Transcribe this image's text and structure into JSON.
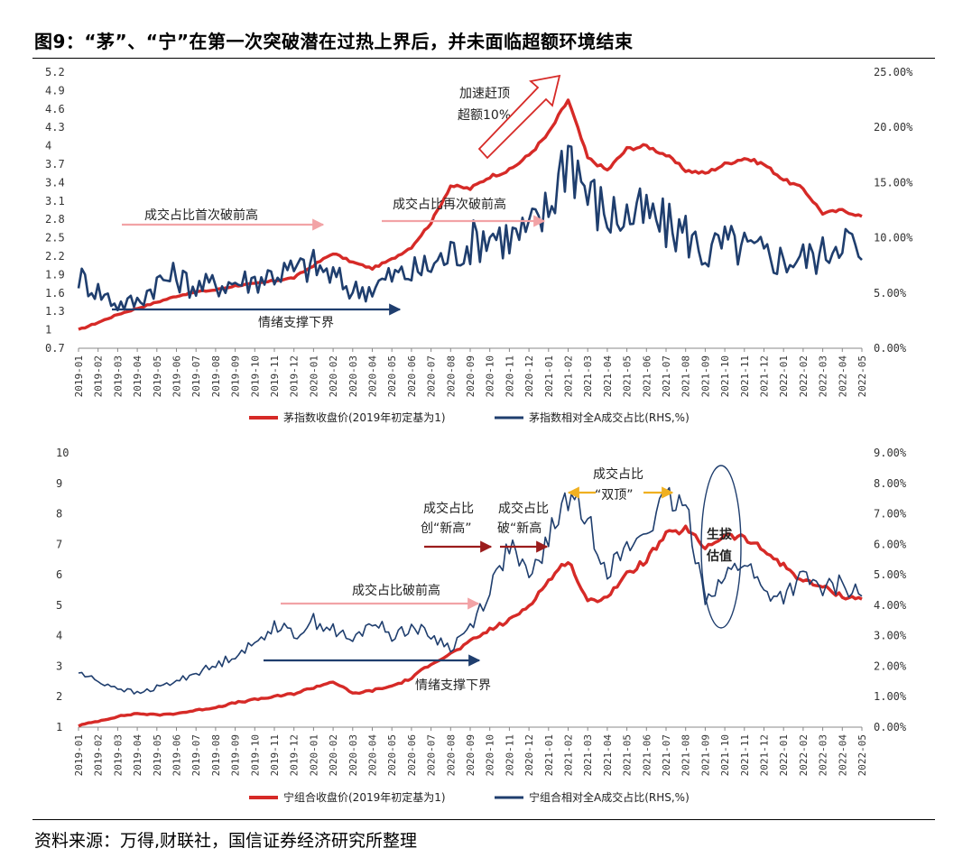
{
  "title": "图9：“茅”、“宁”在第一次突破潜在过热上界后，并未面临超额环境结束",
  "source": "资料来源：万得,财联社，国信证券经济研究所整理",
  "colors": {
    "red": "#d62a27",
    "navy": "#1f3e6e",
    "pink": "#f2a3a6",
    "gold": "#f0b020",
    "darkred": "#9b1c1c"
  },
  "months": [
    "2019-01",
    "2019-02",
    "2019-03",
    "2019-04",
    "2019-05",
    "2019-06",
    "2019-07",
    "2019-08",
    "2019-09",
    "2019-10",
    "2019-11",
    "2019-12",
    "2020-01",
    "2020-02",
    "2020-03",
    "2020-04",
    "2020-05",
    "2020-06",
    "2020-07",
    "2020-08",
    "2020-09",
    "2020-10",
    "2020-11",
    "2020-12",
    "2021-01",
    "2021-02",
    "2021-03",
    "2021-04",
    "2021-05",
    "2021-06",
    "2021-07",
    "2021-08",
    "2021-09",
    "2021-10",
    "2021-11",
    "2021-12",
    "2022-01",
    "2022-02",
    "2022-03",
    "2022-04",
    "2022-05"
  ],
  "chart_data": [
    {
      "type": "line",
      "name": "chart1",
      "ylim_left": [
        0.7,
        5.2
      ],
      "yticks_left": [
        "0.7",
        "1",
        "1.3",
        "1.6",
        "1.9",
        "2.2",
        "2.5",
        "2.8",
        "3.1",
        "3.4",
        "3.7",
        "4",
        "4.3",
        "4.6",
        "4.9",
        "5.2"
      ],
      "ylim_right": [
        0,
        25
      ],
      "yticks_right": [
        "0.00%",
        "5.00%",
        "10.00%",
        "15.00%",
        "20.00%",
        "25.00%"
      ],
      "series": [
        {
          "name": "茅指数收盘价(2019年初定基为1)",
          "axis": "left",
          "color": "#d62a27",
          "values": [
            1.0,
            1.12,
            1.25,
            1.35,
            1.45,
            1.55,
            1.62,
            1.65,
            1.72,
            1.75,
            1.8,
            1.85,
            2.05,
            2.25,
            2.1,
            2.0,
            2.15,
            2.35,
            2.75,
            3.35,
            3.3,
            3.5,
            3.6,
            3.85,
            4.2,
            4.75,
            3.8,
            3.6,
            3.95,
            4.0,
            3.85,
            3.6,
            3.55,
            3.7,
            3.8,
            3.7,
            3.45,
            3.3,
            2.9,
            2.95,
            2.85
          ]
        },
        {
          "name": "茅指数相对全A成交占比(RHS,%)",
          "axis": "right",
          "color": "#1f3e6e",
          "values": [
            6.5,
            5.2,
            4.0,
            4.2,
            6.0,
            6.5,
            5.5,
            5.8,
            6.0,
            6.2,
            6.8,
            7.0,
            7.5,
            6.5,
            5.2,
            5.5,
            6.5,
            6.8,
            7.5,
            8.5,
            9.5,
            10.5,
            10.0,
            10.5,
            12.5,
            18.5,
            14.0,
            12.0,
            12.0,
            12.0,
            11.0,
            10.5,
            8.5,
            9.5,
            9.0,
            8.5,
            8.0,
            8.2,
            8.5,
            10.5,
            8.0
          ]
        }
      ],
      "annotations": [
        "成交占比首次破前高",
        "成交占比再次破前高",
        "情绪支撑下界",
        "加速赶顶",
        "超额10%+"
      ]
    },
    {
      "type": "line",
      "name": "chart2",
      "ylim_left": [
        1,
        10
      ],
      "yticks_left": [
        "1",
        "2",
        "3",
        "4",
        "5",
        "6",
        "7",
        "8",
        "9",
        "10"
      ],
      "ylim_right": [
        0,
        9
      ],
      "yticks_right": [
        "0.00%",
        "1.00%",
        "2.00%",
        "3.00%",
        "4.00%",
        "5.00%",
        "6.00%",
        "7.00%",
        "8.00%",
        "9.00%"
      ],
      "series": [
        {
          "name": "宁组合收盘价(2019年初定基为1)",
          "axis": "left",
          "color": "#d62a27",
          "values": [
            1.05,
            1.2,
            1.35,
            1.45,
            1.4,
            1.45,
            1.55,
            1.65,
            1.8,
            1.9,
            2.0,
            2.1,
            2.3,
            2.5,
            2.1,
            2.2,
            2.35,
            2.6,
            3.1,
            3.4,
            3.8,
            4.2,
            4.5,
            5.0,
            5.8,
            6.5,
            5.1,
            5.3,
            6.0,
            6.5,
            7.3,
            7.5,
            6.9,
            7.3,
            7.2,
            6.8,
            6.3,
            5.8,
            5.6,
            5.3,
            5.2
          ]
        },
        {
          "name": "宁组合相对全A成交占比(RHS,%)",
          "axis": "right",
          "color": "#1f3e6e",
          "values": [
            1.8,
            1.5,
            1.3,
            1.1,
            1.3,
            1.5,
            1.8,
            2.0,
            2.4,
            2.7,
            3.4,
            3.0,
            3.5,
            3.2,
            2.8,
            3.5,
            3.0,
            3.3,
            3.0,
            2.6,
            3.3,
            4.5,
            6.0,
            4.8,
            6.2,
            7.6,
            6.8,
            5.2,
            5.8,
            6.5,
            7.4,
            7.2,
            4.3,
            4.9,
            5.5,
            4.4,
            4.3,
            4.9,
            4.5,
            4.7,
            4.3
          ]
        }
      ],
      "annotations": [
        "成交占比破前高",
        "情绪支撑下界",
        "成交占比",
        "创“新高”",
        "成交占比",
        "破“新高",
        "成交占比",
        "“双顶”",
        "生拔",
        "估值"
      ]
    }
  ]
}
